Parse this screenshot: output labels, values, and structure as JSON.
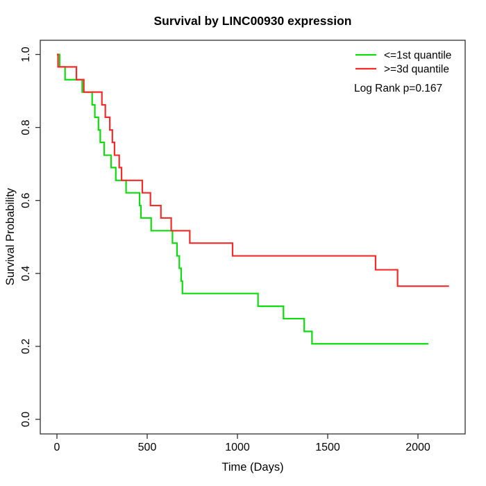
{
  "chart_data": {
    "type": "line",
    "subtype": "kaplan-meier-step",
    "title": "Survival by LINC00930 expression",
    "xlabel": "Time (Days)",
    "ylabel": "Survival Probability",
    "xlim": [
      0,
      2200
    ],
    "ylim": [
      0.0,
      1.0
    ],
    "grid": false,
    "legend_position": "top-right",
    "annotation": "Log Rank p=0.167",
    "x_ticks": [
      {
        "value": 0,
        "label": "0"
      },
      {
        "value": 500,
        "label": "500"
      },
      {
        "value": 1000,
        "label": "1000"
      },
      {
        "value": 1500,
        "label": "1500"
      },
      {
        "value": 2000,
        "label": "2000"
      }
    ],
    "y_ticks": [
      {
        "value": 0.0,
        "label": "0.0"
      },
      {
        "value": 0.2,
        "label": "0.2"
      },
      {
        "value": 0.4,
        "label": "0.4"
      },
      {
        "value": 0.6,
        "label": "0.6"
      },
      {
        "value": 0.8,
        "label": "0.8"
      },
      {
        "value": 1.0,
        "label": "1.0"
      }
    ],
    "series": [
      {
        "name": "<=1st quantile",
        "color": "#0ddb0d",
        "end_time": 2058,
        "steps": [
          [
            0,
            1.0
          ],
          [
            15,
            0.966
          ],
          [
            45,
            0.931
          ],
          [
            140,
            0.897
          ],
          [
            195,
            0.862
          ],
          [
            210,
            0.828
          ],
          [
            230,
            0.793
          ],
          [
            240,
            0.759
          ],
          [
            262,
            0.724
          ],
          [
            300,
            0.69
          ],
          [
            326,
            0.655
          ],
          [
            383,
            0.621
          ],
          [
            458,
            0.586
          ],
          [
            465,
            0.552
          ],
          [
            522,
            0.517
          ],
          [
            640,
            0.483
          ],
          [
            665,
            0.448
          ],
          [
            678,
            0.414
          ],
          [
            688,
            0.379
          ],
          [
            695,
            0.345
          ],
          [
            1114,
            0.31
          ],
          [
            1255,
            0.276
          ],
          [
            1370,
            0.241
          ],
          [
            1413,
            0.207
          ]
        ]
      },
      {
        "name": ">=3d quantile",
        "color": "#f32b2b",
        "end_time": 2172,
        "steps": [
          [
            0,
            1.0
          ],
          [
            6,
            0.966
          ],
          [
            108,
            0.931
          ],
          [
            149,
            0.897
          ],
          [
            249,
            0.862
          ],
          [
            268,
            0.828
          ],
          [
            293,
            0.793
          ],
          [
            307,
            0.759
          ],
          [
            319,
            0.724
          ],
          [
            345,
            0.69
          ],
          [
            358,
            0.655
          ],
          [
            473,
            0.621
          ],
          [
            518,
            0.586
          ],
          [
            576,
            0.552
          ],
          [
            633,
            0.517
          ],
          [
            736,
            0.483
          ],
          [
            973,
            0.448
          ],
          [
            1765,
            0.41
          ],
          [
            1887,
            0.365
          ]
        ]
      }
    ]
  }
}
